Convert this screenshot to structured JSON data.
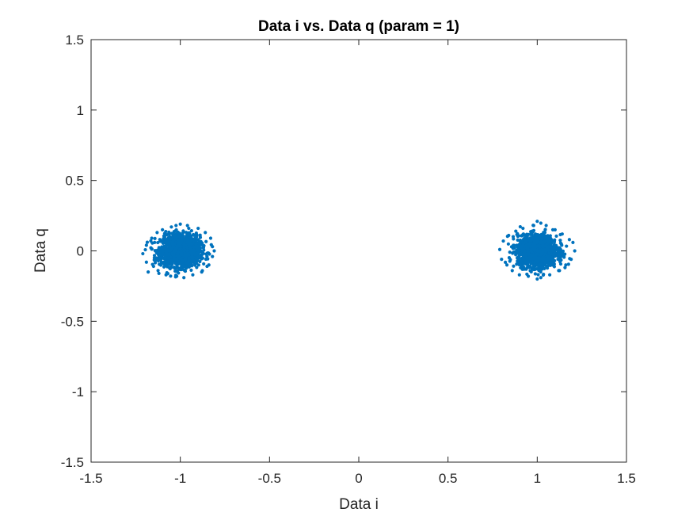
{
  "chart_data": {
    "type": "scatter",
    "title": "Data i vs. Data q (param = 1)",
    "xlabel": "Data i",
    "ylabel": "Data q",
    "xlim": [
      -1.5,
      1.5
    ],
    "ylim": [
      -1.5,
      1.5
    ],
    "xticks": [
      -1.5,
      -1,
      -0.5,
      0,
      0.5,
      1,
      1.5
    ],
    "xtick_labels": [
      "-1.5",
      "-1",
      "-0.5",
      "0",
      "0.5",
      "1",
      "1.5"
    ],
    "yticks": [
      -1.5,
      -1,
      -0.5,
      0,
      0.5,
      1,
      1.5
    ],
    "ytick_labels": [
      "-1.5",
      "-1",
      "-0.5",
      "0",
      "0.5",
      "1",
      "1.5"
    ],
    "grid": false,
    "marker_color": "#0072BD",
    "series": [
      {
        "clusters": [
          {
            "center": [
              -1,
              0
            ],
            "spread_x": 0.2,
            "spread_y": 0.19
          },
          {
            "center": [
              1,
              0
            ],
            "spread_x": 0.2,
            "spread_y": 0.2
          }
        ]
      }
    ],
    "points": [
      [
        -1.21,
        -0.02
      ],
      [
        -1.19,
        0.04
      ],
      [
        -1.19,
        -0.08
      ],
      [
        -1.18,
        -0.15
      ],
      [
        -1.16,
        0.09
      ],
      [
        -1.15,
        -0.11
      ],
      [
        -1.13,
        0.13
      ],
      [
        -1.12,
        -0.16
      ],
      [
        -1.1,
        0.15
      ],
      [
        -1.08,
        -0.17
      ],
      [
        -1.05,
        0.17
      ],
      [
        -1.02,
        -0.18
      ],
      [
        -1.0,
        0.19
      ],
      [
        -0.98,
        -0.19
      ],
      [
        -0.96,
        0.18
      ],
      [
        -0.93,
        -0.17
      ],
      [
        -0.9,
        0.16
      ],
      [
        -0.88,
        -0.15
      ],
      [
        -0.86,
        0.13
      ],
      [
        -0.84,
        -0.1
      ],
      [
        -0.83,
        0.09
      ],
      [
        -0.82,
        -0.04
      ],
      [
        -0.82,
        0.03
      ],
      [
        -0.81,
        0.0
      ],
      [
        0.79,
        0.01
      ],
      [
        0.8,
        -0.06
      ],
      [
        0.81,
        0.07
      ],
      [
        0.83,
        -0.1
      ],
      [
        0.84,
        0.11
      ],
      [
        0.86,
        -0.14
      ],
      [
        0.88,
        0.14
      ],
      [
        0.9,
        -0.17
      ],
      [
        0.92,
        0.16
      ],
      [
        0.95,
        -0.18
      ],
      [
        0.98,
        0.18
      ],
      [
        1.0,
        0.21
      ],
      [
        1.0,
        -0.2
      ],
      [
        1.02,
        -0.19
      ],
      [
        1.05,
        0.18
      ],
      [
        1.07,
        -0.17
      ],
      [
        1.1,
        0.15
      ],
      [
        1.12,
        -0.14
      ],
      [
        1.14,
        0.12
      ],
      [
        1.16,
        -0.1
      ],
      [
        1.18,
        0.08
      ],
      [
        1.19,
        -0.06
      ],
      [
        1.2,
        0.06
      ],
      [
        1.21,
        0.0
      ]
    ]
  }
}
